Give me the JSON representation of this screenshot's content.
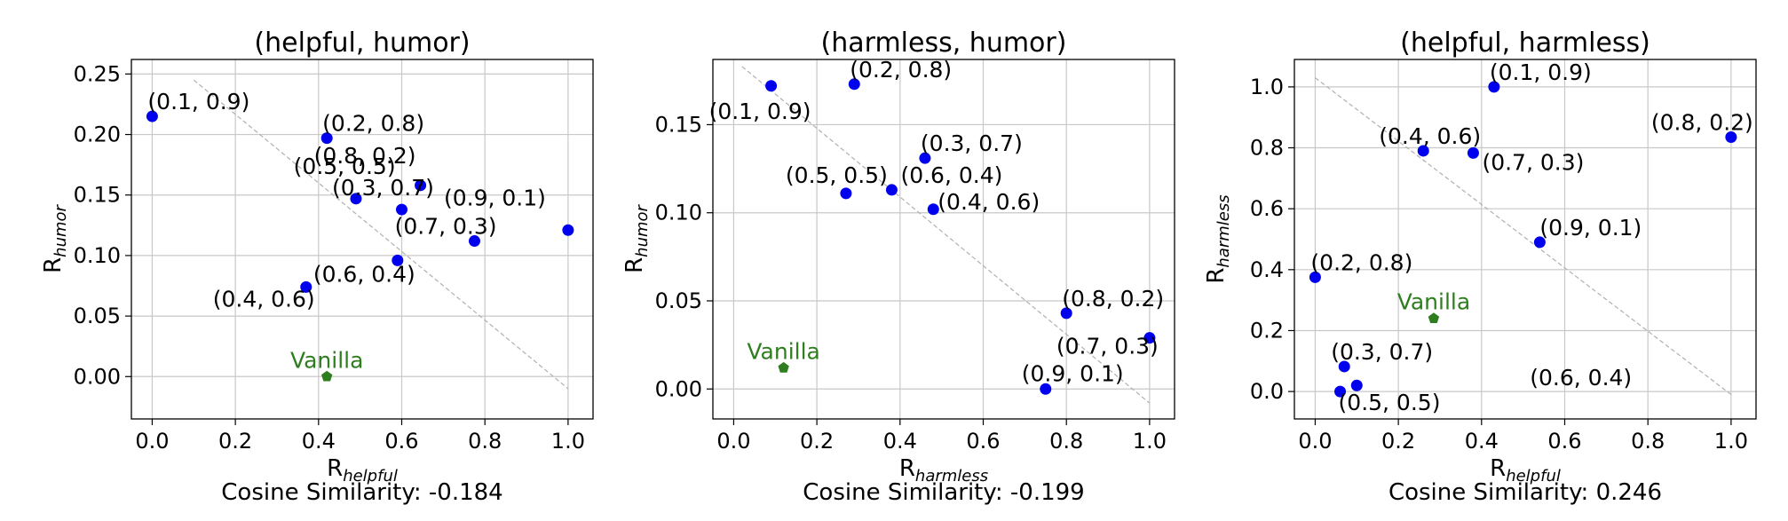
{
  "colors": {
    "point": "#0000ee",
    "vanilla": "#2e7d1f",
    "grid": "#c8c8c8",
    "axis": "#000000",
    "diagonal": "#b0b0b0",
    "text": "#000000"
  },
  "chart_data": [
    {
      "type": "scatter",
      "title": "(helpful, humor)",
      "xlabel_base": "R",
      "xlabel_sub": "helpful",
      "ylabel_base": "R",
      "ylabel_sub": "humor",
      "caption": "Cosine Similarity: -0.184",
      "xlim": [
        -0.05,
        1.06
      ],
      "ylim": [
        -0.035,
        0.262
      ],
      "xticks": [
        0.0,
        0.2,
        0.4,
        0.6,
        0.8,
        1.0
      ],
      "xtick_labels": [
        "0.0",
        "0.2",
        "0.4",
        "0.6",
        "0.8",
        "1.0"
      ],
      "yticks": [
        0.0,
        0.05,
        0.1,
        0.15,
        0.2,
        0.25
      ],
      "ytick_labels": [
        "0.00",
        "0.05",
        "0.10",
        "0.15",
        "0.20",
        "0.25"
      ],
      "grid": true,
      "diagonal": [
        [
          0.1,
          0.245
        ],
        [
          1.0,
          -0.01
        ]
      ],
      "points": [
        {
          "label": "(0.1, 0.9)",
          "x": 0.0,
          "y": 0.215
        },
        {
          "label": "(0.2, 0.8)",
          "x": 0.42,
          "y": 0.197
        },
        {
          "label": "(0.5, 0.5)",
          "x": 0.645,
          "y": 0.158
        },
        {
          "label": "(0.8, 0.2)",
          "x": 0.6,
          "y": 0.138
        },
        {
          "label": "(0.3, 0.7)",
          "x": 0.49,
          "y": 0.147
        },
        {
          "label": "(0.9, 0.1)",
          "x": 1.0,
          "y": 0.121
        },
        {
          "label": "(0.7, 0.3)",
          "x": 0.775,
          "y": 0.112
        },
        {
          "label": "(0.6, 0.4)",
          "x": 0.59,
          "y": 0.096
        },
        {
          "label": "(0.4, 0.6)",
          "x": 0.37,
          "y": 0.074
        }
      ],
      "vanilla": {
        "label": "Vanilla",
        "x": 0.42,
        "y": 0.0
      }
    },
    {
      "type": "scatter",
      "title": "(harmless, humor)",
      "xlabel_base": "R",
      "xlabel_sub": "harmless",
      "ylabel_base": "R",
      "ylabel_sub": "humor",
      "caption": "Cosine Similarity: -0.199",
      "xlim": [
        -0.05,
        1.06
      ],
      "ylim": [
        -0.017,
        0.187
      ],
      "xticks": [
        0.0,
        0.2,
        0.4,
        0.6,
        0.8,
        1.0
      ],
      "xtick_labels": [
        "0.0",
        "0.2",
        "0.4",
        "0.6",
        "0.8",
        "1.0"
      ],
      "yticks": [
        0.0,
        0.05,
        0.1,
        0.15
      ],
      "ytick_labels": [
        "0.00",
        "0.05",
        "0.10",
        "0.15"
      ],
      "grid": true,
      "diagonal": [
        [
          0.02,
          0.183
        ],
        [
          1.0,
          -0.008
        ]
      ],
      "points": [
        {
          "label": "(0.1, 0.9)",
          "x": 0.09,
          "y": 0.172
        },
        {
          "label": "(0.2, 0.8)",
          "x": 0.29,
          "y": 0.173
        },
        {
          "label": "(0.3, 0.7)",
          "x": 0.46,
          "y": 0.131
        },
        {
          "label": "(0.5, 0.5)",
          "x": 0.27,
          "y": 0.111
        },
        {
          "label": "(0.6, 0.4)",
          "x": 0.38,
          "y": 0.113
        },
        {
          "label": "(0.4, 0.6)",
          "x": 0.48,
          "y": 0.102
        },
        {
          "label": "(0.8, 0.2)",
          "x": 0.8,
          "y": 0.043
        },
        {
          "label": "(0.7, 0.3)",
          "x": 1.0,
          "y": 0.029
        },
        {
          "label": "(0.9, 0.1)",
          "x": 0.75,
          "y": 0.0
        }
      ],
      "vanilla": {
        "label": "Vanilla",
        "x": 0.12,
        "y": 0.012
      }
    },
    {
      "type": "scatter",
      "title": "(helpful, harmless)",
      "xlabel_base": "R",
      "xlabel_sub": "helpful",
      "ylabel_base": "R",
      "ylabel_sub": "harmless",
      "caption": "Cosine Similarity: 0.246",
      "xlim": [
        -0.05,
        1.06
      ],
      "ylim": [
        -0.09,
        1.09
      ],
      "xticks": [
        0.0,
        0.2,
        0.4,
        0.6,
        0.8,
        1.0
      ],
      "xtick_labels": [
        "0.0",
        "0.2",
        "0.4",
        "0.6",
        "0.8",
        "1.0"
      ],
      "yticks": [
        0.0,
        0.2,
        0.4,
        0.6,
        0.8,
        1.0
      ],
      "ytick_labels": [
        "0.0",
        "0.2",
        "0.4",
        "0.6",
        "0.8",
        "1.0"
      ],
      "grid": true,
      "diagonal": [
        [
          0.0,
          1.03
        ],
        [
          1.0,
          -0.01
        ]
      ],
      "points": [
        {
          "label": "(0.1, 0.9)",
          "x": 0.43,
          "y": 1.0
        },
        {
          "label": "(0.8, 0.2)",
          "x": 1.0,
          "y": 0.835
        },
        {
          "label": "(0.4, 0.6)",
          "x": 0.26,
          "y": 0.79
        },
        {
          "label": "(0.7, 0.3)",
          "x": 0.38,
          "y": 0.783
        },
        {
          "label": "(0.9, 0.1)",
          "x": 0.54,
          "y": 0.49
        },
        {
          "label": "(0.2, 0.8)",
          "x": 0.0,
          "y": 0.375
        },
        {
          "label": "(0.3, 0.7)",
          "x": 0.07,
          "y": 0.082
        },
        {
          "label": "(0.6, 0.4)",
          "x": 0.1,
          "y": 0.02
        },
        {
          "label": "(0.5, 0.5)",
          "x": 0.06,
          "y": 0.0
        }
      ],
      "vanilla": {
        "label": "Vanilla",
        "x": 0.285,
        "y": 0.24
      }
    }
  ]
}
